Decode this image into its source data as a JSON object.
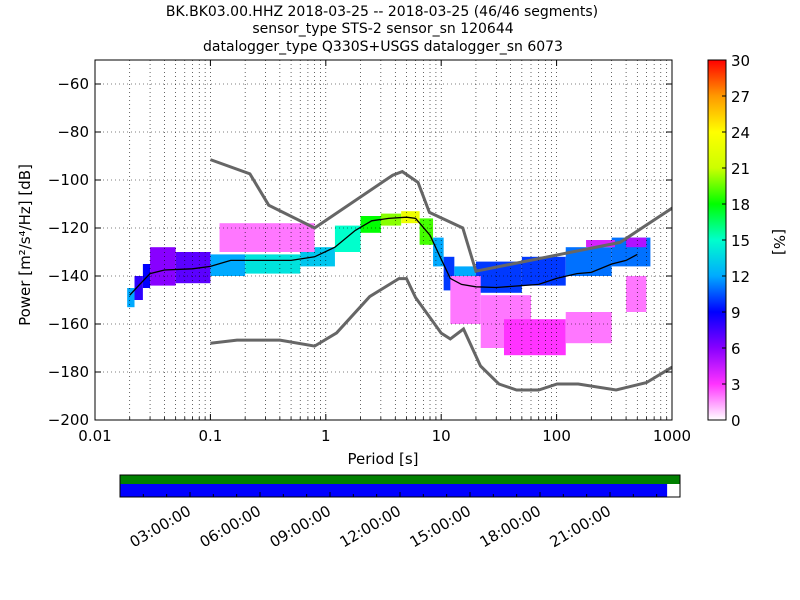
{
  "chart_data": {
    "type": "heatmap",
    "title_lines": [
      "BK.BK03.00.HHZ   2018-03-25 -- 2018-03-25  (46/46 segments)",
      "sensor_type STS-2 sensor_sn 120644",
      "datalogger_type Q330S+USGS datalogger_sn 6073"
    ],
    "xlabel": "Period [s]",
    "ylabel": "Power [m²/s⁴/Hz] [dB]",
    "x_scale": "log",
    "xlim": [
      0.01,
      1000
    ],
    "ylim": [
      -200,
      -50
    ],
    "x_ticks": [
      0.01,
      0.1,
      1,
      10,
      100,
      1000
    ],
    "x_tick_labels": [
      "0.01",
      "0.1",
      "1",
      "10",
      "100",
      "1000"
    ],
    "y_ticks": [
      -200,
      -180,
      -160,
      -140,
      -120,
      -100,
      -80,
      -60
    ],
    "y_tick_labels": [
      "−200",
      "−180",
      "−160",
      "−140",
      "−120",
      "−100",
      "−80",
      "−60"
    ],
    "grid": true,
    "colorbar": {
      "label": "[%]",
      "ticks": [
        0,
        3,
        6,
        9,
        12,
        15,
        18,
        21,
        24,
        27,
        30
      ],
      "tick_labels": [
        "0",
        "3",
        "6",
        "9",
        "12",
        "15",
        "18",
        "21",
        "24",
        "27",
        "30"
      ],
      "range": [
        0,
        30
      ],
      "colors": [
        "#ffffff",
        "#ff33ff",
        "#8800ff",
        "#0000ff",
        "#00aaff",
        "#00ffcc",
        "#00ff00",
        "#ccff00",
        "#ffff00",
        "#ff9900",
        "#ff0000"
      ]
    },
    "noise_models": {
      "color": "#666666",
      "high": [
        [
          0.1,
          -91.5
        ],
        [
          0.22,
          -97.4
        ],
        [
          0.32,
          -110.5
        ],
        [
          0.8,
          -120.0
        ],
        [
          3.8,
          -98.0
        ],
        [
          4.6,
          -96.5
        ],
        [
          6.3,
          -101.0
        ],
        [
          7.9,
          -113.5
        ],
        [
          15.4,
          -120.0
        ],
        [
          20,
          -138.0
        ],
        [
          354.8,
          -126.0
        ],
        [
          10000,
          -80.1
        ]
      ],
      "low": [
        [
          0.1,
          -168.0
        ],
        [
          0.17,
          -166.7
        ],
        [
          0.4,
          -166.7
        ],
        [
          0.8,
          -169.2
        ],
        [
          1.24,
          -163.7
        ],
        [
          2.4,
          -148.6
        ],
        [
          4.3,
          -141.1
        ],
        [
          5.0,
          -141.1
        ],
        [
          6.0,
          -149.0
        ],
        [
          10.0,
          -163.8
        ],
        [
          12.0,
          -166.2
        ],
        [
          15.6,
          -162.1
        ],
        [
          21.9,
          -177.5
        ],
        [
          31.6,
          -185.0
        ],
        [
          45.0,
          -187.5
        ],
        [
          70.0,
          -187.5
        ],
        [
          101.0,
          -185.0
        ],
        [
          154.0,
          -185.0
        ],
        [
          328.0,
          -187.5
        ],
        [
          600.0,
          -184.4
        ],
        [
          1000.0,
          -178.0
        ]
      ]
    },
    "series": [
      {
        "name": "median",
        "color": "#000000",
        "points": [
          [
            0.02,
            -148
          ],
          [
            0.025,
            -143
          ],
          [
            0.03,
            -139
          ],
          [
            0.04,
            -137.5
          ],
          [
            0.07,
            -137
          ],
          [
            0.1,
            -136
          ],
          [
            0.15,
            -133.5
          ],
          [
            0.3,
            -133.5
          ],
          [
            0.5,
            -133.5
          ],
          [
            0.8,
            -132
          ],
          [
            1.2,
            -128
          ],
          [
            1.8,
            -121
          ],
          [
            2.5,
            -117
          ],
          [
            3.5,
            -116
          ],
          [
            5,
            -115.5
          ],
          [
            6,
            -116
          ],
          [
            8,
            -123
          ],
          [
            10,
            -133
          ],
          [
            12,
            -141
          ],
          [
            15,
            -143.5
          ],
          [
            20,
            -144.5
          ],
          [
            30,
            -144.8
          ],
          [
            50,
            -144
          ],
          [
            70,
            -143.5
          ],
          [
            100,
            -141
          ],
          [
            150,
            -139
          ],
          [
            200,
            -138.5
          ],
          [
            300,
            -135
          ],
          [
            400,
            -133.5
          ],
          [
            500,
            -131
          ]
        ]
      }
    ],
    "density": [
      {
        "x": [
          0.019,
          0.022
        ],
        "y": [
          -153,
          -145
        ],
        "v": 12
      },
      {
        "x": [
          0.022,
          0.026
        ],
        "y": [
          -150,
          -140
        ],
        "v": 8
      },
      {
        "x": [
          0.026,
          0.03
        ],
        "y": [
          -145,
          -135
        ],
        "v": 9
      },
      {
        "x": [
          0.03,
          0.05
        ],
        "y": [
          -144,
          -128
        ],
        "v": 6
      },
      {
        "x": [
          0.05,
          0.1
        ],
        "y": [
          -143,
          -130
        ],
        "v": 7
      },
      {
        "x": [
          0.1,
          0.2
        ],
        "y": [
          -140,
          -131
        ],
        "v": 12
      },
      {
        "x": [
          0.2,
          0.6
        ],
        "y": [
          -139,
          -131
        ],
        "v": 14
      },
      {
        "x": [
          0.6,
          1.2
        ],
        "y": [
          -136,
          -128
        ],
        "v": 13
      },
      {
        "x": [
          1.2,
          2.0
        ],
        "y": [
          -130,
          -119
        ],
        "v": 15
      },
      {
        "x": [
          2.0,
          3.0
        ],
        "y": [
          -122,
          -115
        ],
        "v": 18
      },
      {
        "x": [
          3.0,
          4.5
        ],
        "y": [
          -119,
          -114
        ],
        "v": 20
      },
      {
        "x": [
          4.5,
          6.5
        ],
        "y": [
          -118,
          -113
        ],
        "v": 23
      },
      {
        "x": [
          6.5,
          8.5
        ],
        "y": [
          -127,
          -116
        ],
        "v": 19
      },
      {
        "x": [
          8.5,
          10.5
        ],
        "y": [
          -136,
          -124
        ],
        "v": 12
      },
      {
        "x": [
          10.5,
          13
        ],
        "y": [
          -146,
          -132
        ],
        "v": 10
      },
      {
        "x": [
          13,
          20
        ],
        "y": [
          -150,
          -136
        ],
        "v": 12
      },
      {
        "x": [
          20,
          50
        ],
        "y": [
          -147,
          -134
        ],
        "v": 10
      },
      {
        "x": [
          50,
          120
        ],
        "y": [
          -144,
          -132
        ],
        "v": 10
      },
      {
        "x": [
          120,
          300
        ],
        "y": [
          -140,
          -128
        ],
        "v": 11
      },
      {
        "x": [
          300,
          650
        ],
        "y": [
          -136,
          -124
        ],
        "v": 11
      },
      {
        "x": [
          0.12,
          0.8
        ],
        "y": [
          -130,
          -118
        ],
        "v": 2
      },
      {
        "x": [
          12,
          22
        ],
        "y": [
          -160,
          -140
        ],
        "v": 2
      },
      {
        "x": [
          22,
          60
        ],
        "y": [
          -170,
          -148
        ],
        "v": 2
      },
      {
        "x": [
          35,
          120
        ],
        "y": [
          -173,
          -158
        ],
        "v": 3
      },
      {
        "x": [
          120,
          300
        ],
        "y": [
          -168,
          -155
        ],
        "v": 2
      },
      {
        "x": [
          400,
          600
        ],
        "y": [
          -155,
          -140
        ],
        "v": 2
      },
      {
        "x": [
          180,
          320
        ],
        "y": [
          -128,
          -125
        ],
        "v": 4
      },
      {
        "x": [
          400,
          600
        ],
        "y": [
          -128,
          -124
        ],
        "v": 5
      }
    ],
    "availability": {
      "label_ticks": [
        "03:00:00",
        "06:00:00",
        "09:00:00",
        "12:00:00",
        "15:00:00",
        "18:00:00",
        "21:00:00"
      ],
      "tick_hours": [
        3,
        6,
        9,
        12,
        15,
        18,
        21
      ],
      "hour_range": [
        0,
        24
      ],
      "data_bar": {
        "color": "#0000ff",
        "fraction": 0.977
      },
      "gap_bar": {
        "color": "#008000",
        "fraction": 1.0
      }
    }
  }
}
